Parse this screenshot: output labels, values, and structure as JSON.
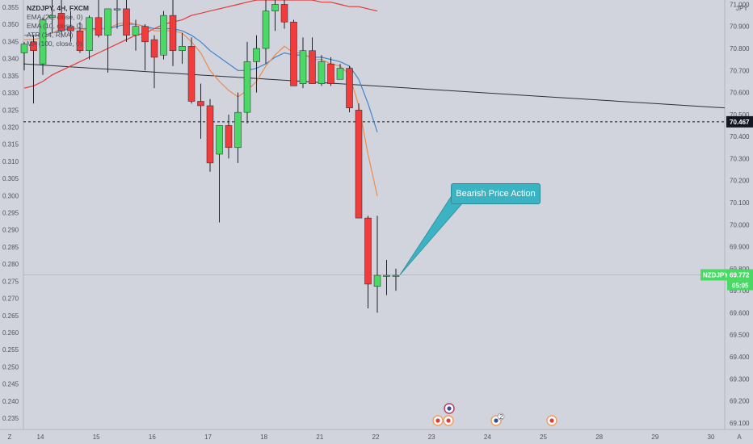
{
  "chart_data": {
    "type": "candlestick",
    "symbol_line": "NZDJPY, 4H, FXCM",
    "indicators": [
      "EMA (20, close, 0)",
      "EMA (10, close, 0)",
      "ATR (14, RMA)",
      "MA (100, close, 0)"
    ],
    "left_axis": {
      "ticks": [
        "0.355",
        "0.350",
        "0.345",
        "0.340",
        "0.335",
        "0.330",
        "0.325",
        "0.320",
        "0.315",
        "0.310",
        "0.305",
        "0.300",
        "0.295",
        "0.290",
        "0.285",
        "0.280",
        "0.275",
        "0.270",
        "0.265",
        "0.260",
        "0.255",
        "0.250",
        "0.245",
        "0.240",
        "0.235"
      ]
    },
    "right_axis": {
      "top_label": "JPY",
      "ticks": [
        "71.000",
        "70.900",
        "70.800",
        "70.700",
        "70.600",
        "70.500",
        "70.400",
        "70.300",
        "70.200",
        "70.100",
        "70.000",
        "69.900",
        "69.800",
        "69.700",
        "69.600",
        "69.500",
        "69.400",
        "69.300",
        "69.200",
        "69.100"
      ],
      "range": [
        69.07,
        71.02
      ]
    },
    "x_axis": {
      "ticks": [
        "14",
        "15",
        "16",
        "17",
        "18",
        "21",
        "22",
        "23",
        "24",
        "25",
        "28",
        "29",
        "30"
      ],
      "left_corner": "Z",
      "right_corner": "A"
    },
    "candles": [
      {
        "o": 70.78,
        "h": 70.83,
        "l": 70.7,
        "c": 70.82
      },
      {
        "o": 70.83,
        "h": 70.86,
        "l": 70.55,
        "c": 70.79
      },
      {
        "o": 70.73,
        "h": 70.94,
        "l": 70.68,
        "c": 70.93
      },
      {
        "o": 70.94,
        "h": 71.02,
        "l": 70.87,
        "c": 70.95
      },
      {
        "o": 70.96,
        "h": 71.02,
        "l": 70.85,
        "c": 70.88
      },
      {
        "o": 70.9,
        "h": 70.97,
        "l": 70.83,
        "c": 70.88
      },
      {
        "o": 70.88,
        "h": 70.92,
        "l": 70.78,
        "c": 70.79
      },
      {
        "o": 70.79,
        "h": 70.95,
        "l": 70.75,
        "c": 70.94
      },
      {
        "o": 70.94,
        "h": 71.02,
        "l": 70.85,
        "c": 70.86
      },
      {
        "o": 70.86,
        "h": 70.98,
        "l": 70.69,
        "c": 70.98
      },
      {
        "o": 70.98,
        "h": 71.02,
        "l": 70.89,
        "c": 70.98
      },
      {
        "o": 70.98,
        "h": 71.02,
        "l": 70.83,
        "c": 70.86
      },
      {
        "o": 70.86,
        "h": 70.93,
        "l": 70.79,
        "c": 70.9
      },
      {
        "o": 70.9,
        "h": 70.91,
        "l": 70.7,
        "c": 70.83
      },
      {
        "o": 70.84,
        "h": 70.86,
        "l": 70.62,
        "c": 70.76
      },
      {
        "o": 70.77,
        "h": 70.97,
        "l": 70.75,
        "c": 70.95
      },
      {
        "o": 70.95,
        "h": 71.02,
        "l": 70.72,
        "c": 70.79
      },
      {
        "o": 70.79,
        "h": 70.87,
        "l": 70.73,
        "c": 70.81
      },
      {
        "o": 70.81,
        "h": 70.85,
        "l": 70.55,
        "c": 70.56
      },
      {
        "o": 70.56,
        "h": 70.64,
        "l": 70.39,
        "c": 70.54
      },
      {
        "o": 70.54,
        "h": 70.57,
        "l": 70.24,
        "c": 70.28
      },
      {
        "o": 70.32,
        "h": 70.45,
        "l": 70.01,
        "c": 70.45
      },
      {
        "o": 70.45,
        "h": 70.5,
        "l": 70.3,
        "c": 70.35
      },
      {
        "o": 70.35,
        "h": 70.6,
        "l": 70.28,
        "c": 70.51
      },
      {
        "o": 70.51,
        "h": 70.83,
        "l": 70.46,
        "c": 70.74
      },
      {
        "o": 70.74,
        "h": 70.86,
        "l": 70.6,
        "c": 70.8
      },
      {
        "o": 70.8,
        "h": 71.02,
        "l": 70.73,
        "c": 70.97
      },
      {
        "o": 70.97,
        "h": 71.02,
        "l": 70.88,
        "c": 71.0
      },
      {
        "o": 71.0,
        "h": 71.02,
        "l": 70.89,
        "c": 70.92
      },
      {
        "o": 70.92,
        "h": 70.93,
        "l": 70.63,
        "c": 70.63
      },
      {
        "o": 70.64,
        "h": 70.85,
        "l": 70.62,
        "c": 70.79
      },
      {
        "o": 70.79,
        "h": 70.85,
        "l": 70.64,
        "c": 70.64
      },
      {
        "o": 70.64,
        "h": 70.77,
        "l": 70.63,
        "c": 70.74
      },
      {
        "o": 70.73,
        "h": 70.76,
        "l": 70.63,
        "c": 70.64
      },
      {
        "o": 70.66,
        "h": 70.73,
        "l": 70.66,
        "c": 70.71
      },
      {
        "o": 70.71,
        "h": 70.72,
        "l": 70.51,
        "c": 70.53
      },
      {
        "o": 70.52,
        "h": 70.55,
        "l": 70.03,
        "c": 70.03
      },
      {
        "o": 70.03,
        "h": 70.04,
        "l": 69.62,
        "c": 69.73
      },
      {
        "o": 69.72,
        "h": 70.04,
        "l": 69.6,
        "c": 69.77
      },
      {
        "o": 69.77,
        "h": 69.84,
        "l": 69.68,
        "c": 69.77
      },
      {
        "o": 69.77,
        "h": 69.8,
        "l": 69.7,
        "c": 69.77
      }
    ],
    "ema10": [
      70.84,
      70.84,
      70.85,
      70.87,
      70.89,
      70.89,
      70.89,
      70.88,
      70.89,
      70.89,
      70.91,
      70.92,
      70.91,
      70.9,
      70.88,
      70.88,
      70.88,
      70.87,
      70.83,
      70.78,
      70.7,
      70.65,
      70.61,
      70.58,
      70.61,
      70.65,
      70.72,
      70.77,
      70.81,
      70.78,
      70.78,
      70.75,
      70.75,
      70.73,
      70.72,
      70.68,
      70.54,
      70.32,
      70.13
    ],
    "ema20": [
      70.86,
      70.86,
      70.86,
      70.87,
      70.88,
      70.89,
      70.89,
      70.89,
      70.89,
      70.89,
      70.9,
      70.91,
      70.91,
      70.9,
      70.89,
      70.89,
      70.89,
      70.88,
      70.86,
      70.83,
      70.79,
      70.76,
      70.73,
      70.7,
      70.7,
      70.71,
      70.73,
      70.76,
      70.78,
      70.77,
      70.77,
      70.76,
      70.76,
      70.75,
      70.74,
      70.72,
      70.66,
      70.55,
      70.42
    ],
    "ma100": [
      70.62,
      70.63,
      70.65,
      70.68,
      70.7,
      70.72,
      70.74,
      70.76,
      70.78,
      70.8,
      70.82,
      70.84,
      70.86,
      70.87,
      70.89,
      70.91,
      70.92,
      70.93,
      70.95,
      70.96,
      70.97,
      70.98,
      70.99,
      71.0,
      71.01,
      71.02,
      71.02,
      71.02,
      71.02,
      71.02,
      71.02,
      71.02,
      71.01,
      71.01,
      71.0,
      70.99,
      70.99,
      70.98,
      70.97
    ],
    "trendline": {
      "from": 70.73,
      "to": 70.53
    },
    "horizontal_level": {
      "value": 70.467,
      "label": "70.467"
    },
    "last_price": {
      "value": 69.772,
      "symbol": "NZDJPY",
      "label": "69.772",
      "countdown": "05:05"
    },
    "annotation": {
      "text": "Bearish Price Action"
    },
    "event_badges": [
      "2"
    ]
  },
  "colors": {
    "background": "#d1d4dc",
    "up": "#4bd965",
    "down": "#f23b3b",
    "ema20": "#3e86d0",
    "ema10": "#f08a4b",
    "ma100": "#e83838",
    "trendline": "#2a2e39",
    "last_price_tag": "#4bd965",
    "level_tag": "#131722",
    "annotation": "#3bb3c3"
  }
}
